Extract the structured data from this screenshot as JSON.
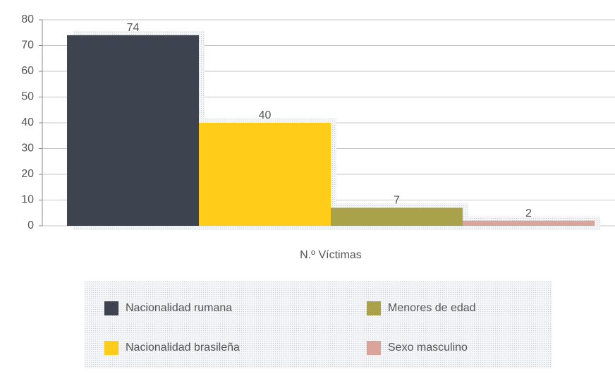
{
  "chart_data": {
    "type": "bar",
    "categories": [
      "N.º Víctimas"
    ],
    "series": [
      {
        "name": "Nacionalidad rumana",
        "color": "#3d4450",
        "values": [
          74
        ]
      },
      {
        "name": "Nacionalidad brasileña",
        "color": "#ffcc1a",
        "values": [
          40
        ]
      },
      {
        "name": "Menores de edad",
        "color": "#a9a24a",
        "values": [
          7
        ]
      },
      {
        "name": "Sexo masculino",
        "color": "#d9a49a",
        "values": [
          2
        ]
      }
    ],
    "ylim": [
      0,
      80
    ],
    "yticks": [
      0,
      10,
      20,
      30,
      40,
      50,
      60,
      70,
      80
    ],
    "grid": true,
    "legend": "bottom"
  }
}
